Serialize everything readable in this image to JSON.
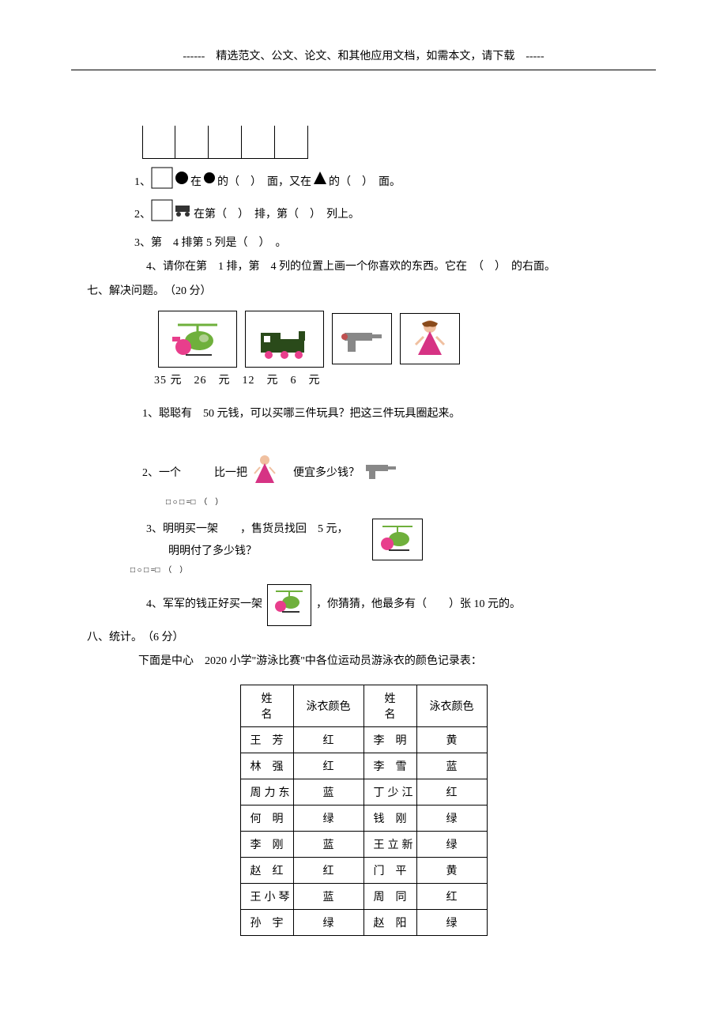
{
  "header": "------　精选范文、公文、论文、和其他应用文档，如需本文，请下载　-----",
  "grid": {
    "rows": 1,
    "cols": 5,
    "colors": {
      "border": "#000000",
      "bg": "#ffffff"
    }
  },
  "section6": {
    "q1": {
      "prefix": "1、",
      "mid1": "在",
      "mid2": "的（　）　面，又在",
      "mid3": "的（　）　面。"
    },
    "q2": {
      "prefix": "2、",
      "text": "在第（　）　排，第（　）　列上。"
    },
    "q3": "3、第　4 排第 5 列是（　）　。",
    "q4": "4、请你在第　1 排，第　4 列的位置上画一个你喜欢的东西。它在　（　）　的右面。"
  },
  "section7": {
    "header": "七、解决问题。　（20 分）",
    "prices": "35 元　26　元　12　元　6　元",
    "q1": "1、聪聪有　50 元钱，可以买哪三件玩具？把这三件玩具圈起来。",
    "q2": {
      "prefix": "2、一个　　　比一把",
      "suffix": "　便宜多少钱？"
    },
    "eq": "□ ○ □ =□　（　）",
    "q3": {
      "line1_prefix": "3、明明买一架　　，售货员找回　5 元，",
      "line2": "明明付了多少钱？"
    },
    "q4": {
      "prefix": "4、军军的钱正好买一架",
      "suffix": "，你猜猜，他最多有（　　）张 10 元的。"
    }
  },
  "section8": {
    "header": "八、统计。　（6 分）",
    "intro": "下面是中心　2020 小学\"游泳比赛\"中各位运动员游泳衣的颜色记录表：",
    "table": {
      "columns": [
        "姓　名",
        "泳衣颜色",
        "姓　名",
        "泳衣颜色"
      ],
      "rows": [
        {
          "n1": "王芳",
          "n1s": true,
          "c1": "红",
          "n2": "李明",
          "n2s": true,
          "c2": "黄"
        },
        {
          "n1": "林强",
          "n1s": true,
          "c1": "红",
          "n2": "李雪",
          "n2s": true,
          "c2": "蓝"
        },
        {
          "n1": "周力东",
          "n1s": false,
          "c1": "蓝",
          "n2": "丁少江",
          "n2s": false,
          "c2": "红"
        },
        {
          "n1": "何明",
          "n1s": true,
          "c1": "绿",
          "n2": "钱刚",
          "n2s": true,
          "c2": "绿"
        },
        {
          "n1": "李刚",
          "n1s": true,
          "c1": "蓝",
          "n2": "王立新",
          "n2s": false,
          "c2": "绿"
        },
        {
          "n1": "赵红",
          "n1s": true,
          "c1": "红",
          "n2": "门平",
          "n2s": true,
          "c2": "黄"
        },
        {
          "n1": "王小琴",
          "n1s": false,
          "c1": "蓝",
          "n2": "周同",
          "n2s": true,
          "c2": "红"
        },
        {
          "n1": "孙宇",
          "n1s": true,
          "c1": "绿",
          "n2": "赵阳",
          "n2s": true,
          "c2": "绿"
        }
      ]
    }
  },
  "icons": {
    "heli_color": "#e83e8c",
    "heli_body": "#6fb03c",
    "train_color": "#2a4a1a",
    "gun_color": "#888888",
    "doll_dress": "#d63384",
    "doll_skin": "#f0c0a0",
    "circle_black": "#000000",
    "triangle_black": "#000000",
    "car_color": "#333333"
  }
}
